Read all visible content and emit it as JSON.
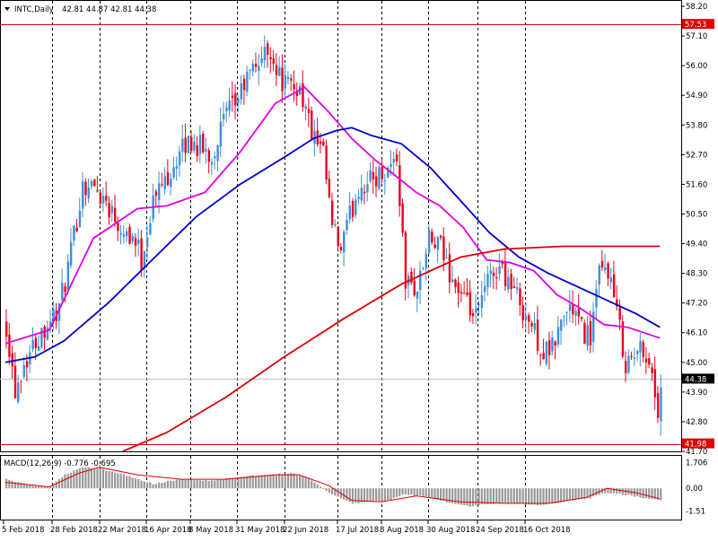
{
  "title_bar": {
    "dropdown_icon": "triangle-down-icon",
    "text": "INTC,Daily",
    "ohlc": "42.81 44.87 42.81 44.38"
  },
  "price_panel": {
    "y_ticks": [
      "58.20",
      "57.10",
      "56.00",
      "54.90",
      "53.80",
      "52.70",
      "51.60",
      "50.50",
      "49.40",
      "48.30",
      "47.20",
      "46.10",
      "45.00",
      "43.90",
      "42.80",
      "41.70"
    ],
    "hlines": [
      {
        "label": "57.53",
        "value": 57.53,
        "color": "#e00000"
      },
      {
        "label": "41.98",
        "value": 41.98,
        "color": "#e00000"
      }
    ],
    "current": {
      "label": "44.38",
      "value": 44.38
    },
    "ylim": [
      41.7,
      58.2
    ]
  },
  "macd_panel": {
    "label": "MACD(12,26,9) -0.776 -0.695",
    "y_ticks": [
      "1.706",
      "0.00",
      "-1.51"
    ]
  },
  "x_axis": {
    "labels": [
      "5 Feb 2018",
      "28 Feb 2018",
      "22 Mar 2018",
      "16 Apr 2018",
      "8 May 2018",
      "31 May 2018",
      "22 Jun 2018",
      "17 Jul 2018",
      "8 Aug 2018",
      "30 Aug 2018",
      "24 Sep 2018",
      "16 Oct 2018"
    ]
  },
  "colors": {
    "bull": "#3d8ed8",
    "bear": "#e8001c",
    "ma_fast": "#e000e0",
    "ma_mid": "#0000cc",
    "ma_slow": "#dd0000",
    "grid": "#000000"
  },
  "chart_data": {
    "type": "candlestick",
    "symbol": "INTC",
    "timeframe": "Daily",
    "ylim": [
      41.7,
      58.2
    ],
    "close_path": [
      [
        0,
        46.4
      ],
      [
        3,
        44.0
      ],
      [
        6,
        45.0
      ],
      [
        10,
        45.8
      ],
      [
        14,
        46.5
      ],
      [
        18,
        47.0
      ],
      [
        22,
        49.0
      ],
      [
        26,
        51.6
      ],
      [
        30,
        51.5
      ],
      [
        34,
        51.0
      ],
      [
        38,
        50.2
      ],
      [
        40,
        50.0
      ],
      [
        44,
        49.5
      ],
      [
        46,
        48.8
      ],
      [
        50,
        51.0
      ],
      [
        54,
        51.8
      ],
      [
        58,
        52.5
      ],
      [
        62,
        53.2
      ],
      [
        66,
        53.0
      ],
      [
        70,
        52.6
      ],
      [
        74,
        54.0
      ],
      [
        78,
        54.6
      ],
      [
        82,
        55.5
      ],
      [
        86,
        56.2
      ],
      [
        90,
        56.6
      ],
      [
        93,
        55.6
      ],
      [
        96,
        55.2
      ],
      [
        100,
        55.2
      ],
      [
        104,
        53.5
      ],
      [
        106,
        53.0
      ],
      [
        108,
        52.6
      ],
      [
        111,
        50.0
      ],
      [
        114,
        49.1
      ],
      [
        116,
        50.0
      ],
      [
        120,
        51.5
      ],
      [
        125,
        51.8
      ],
      [
        130,
        52.2
      ],
      [
        133,
        52.6
      ],
      [
        136,
        48.0
      ],
      [
        140,
        47.7
      ],
      [
        144,
        49.5
      ],
      [
        148,
        49.2
      ],
      [
        152,
        48.1
      ],
      [
        156,
        47.2
      ],
      [
        160,
        46.6
      ],
      [
        164,
        48.0
      ],
      [
        168,
        48.6
      ],
      [
        172,
        47.9
      ],
      [
        176,
        47.0
      ],
      [
        180,
        46.1
      ],
      [
        183,
        45.3
      ],
      [
        186,
        45.5
      ],
      [
        190,
        46.8
      ],
      [
        193,
        47.0
      ],
      [
        196,
        46.2
      ],
      [
        199,
        46.0
      ],
      [
        202,
        48.2
      ],
      [
        205,
        48.5
      ],
      [
        208,
        46.8
      ],
      [
        211,
        45.0
      ],
      [
        214,
        45.2
      ],
      [
        217,
        45.6
      ],
      [
        220,
        44.6
      ],
      [
        222,
        43.0
      ],
      [
        223,
        44.38
      ]
    ],
    "moving_averages": [
      {
        "color": "#e000e0",
        "points": [
          [
            0,
            45.7
          ],
          [
            15,
            46.2
          ],
          [
            30,
            49.6
          ],
          [
            45,
            50.7
          ],
          [
            55,
            50.8
          ],
          [
            68,
            51.3
          ],
          [
            80,
            52.8
          ],
          [
            92,
            54.6
          ],
          [
            102,
            55.2
          ],
          [
            110,
            54.3
          ],
          [
            118,
            53.3
          ],
          [
            126,
            52.5
          ],
          [
            132,
            52.0
          ],
          [
            140,
            51.3
          ],
          [
            148,
            50.8
          ],
          [
            156,
            50.0
          ],
          [
            164,
            48.8
          ],
          [
            172,
            48.7
          ],
          [
            180,
            48.4
          ],
          [
            188,
            47.5
          ],
          [
            196,
            47.0
          ],
          [
            204,
            46.4
          ],
          [
            212,
            46.3
          ],
          [
            223,
            45.9
          ]
        ]
      },
      {
        "color": "#0000cc",
        "points": [
          [
            0,
            45.0
          ],
          [
            10,
            45.2
          ],
          [
            20,
            45.8
          ],
          [
            35,
            47.2
          ],
          [
            50,
            48.8
          ],
          [
            65,
            50.4
          ],
          [
            80,
            51.6
          ],
          [
            95,
            52.6
          ],
          [
            105,
            53.3
          ],
          [
            113,
            53.6
          ],
          [
            118,
            53.7
          ],
          [
            125,
            53.4
          ],
          [
            135,
            53.1
          ],
          [
            145,
            52.2
          ],
          [
            155,
            51.0
          ],
          [
            165,
            49.8
          ],
          [
            175,
            48.9
          ],
          [
            185,
            48.3
          ],
          [
            195,
            47.8
          ],
          [
            205,
            47.3
          ],
          [
            215,
            46.8
          ],
          [
            223,
            46.3
          ]
        ]
      },
      {
        "color": "#dd0000",
        "points": [
          [
            40,
            41.7
          ],
          [
            55,
            42.4
          ],
          [
            75,
            43.7
          ],
          [
            95,
            45.2
          ],
          [
            115,
            46.6
          ],
          [
            135,
            47.9
          ],
          [
            155,
            48.9
          ],
          [
            170,
            49.2
          ],
          [
            190,
            49.3
          ],
          [
            205,
            49.3
          ],
          [
            223,
            49.3
          ]
        ]
      }
    ],
    "macd_hist_path": [
      [
        0,
        0.6
      ],
      [
        8,
        0.2
      ],
      [
        15,
        0.1
      ],
      [
        20,
        0.9
      ],
      [
        26,
        1.4
      ],
      [
        32,
        1.3
      ],
      [
        40,
        0.9
      ],
      [
        50,
        0.3
      ],
      [
        60,
        0.6
      ],
      [
        70,
        0.5
      ],
      [
        80,
        0.8
      ],
      [
        90,
        0.9
      ],
      [
        97,
        1.0
      ],
      [
        103,
        0.7
      ],
      [
        110,
        -0.3
      ],
      [
        118,
        -1.0
      ],
      [
        124,
        -0.9
      ],
      [
        130,
        -0.8
      ],
      [
        136,
        -0.4
      ],
      [
        142,
        -0.5
      ],
      [
        150,
        -0.9
      ],
      [
        158,
        -1.2
      ],
      [
        166,
        -1.0
      ],
      [
        174,
        -1.0
      ],
      [
        182,
        -1.1
      ],
      [
        190,
        -0.9
      ],
      [
        198,
        -0.7
      ],
      [
        204,
        -0.3
      ],
      [
        210,
        -0.4
      ],
      [
        216,
        -0.6
      ],
      [
        223,
        -0.8
      ]
    ],
    "macd_signal_path": [
      [
        0,
        0.4
      ],
      [
        15,
        0.1
      ],
      [
        25,
        1.0
      ],
      [
        32,
        1.4
      ],
      [
        45,
        0.9
      ],
      [
        60,
        0.6
      ],
      [
        75,
        0.6
      ],
      [
        92,
        0.9
      ],
      [
        100,
        0.9
      ],
      [
        110,
        0.2
      ],
      [
        118,
        -0.8
      ],
      [
        128,
        -0.9
      ],
      [
        140,
        -0.5
      ],
      [
        155,
        -0.9
      ],
      [
        170,
        -1.0
      ],
      [
        185,
        -1.0
      ],
      [
        198,
        -0.6
      ],
      [
        205,
        0.0
      ],
      [
        215,
        -0.3
      ],
      [
        223,
        -0.7
      ]
    ],
    "macd_ylim": [
      -1.6,
      1.8
    ]
  }
}
